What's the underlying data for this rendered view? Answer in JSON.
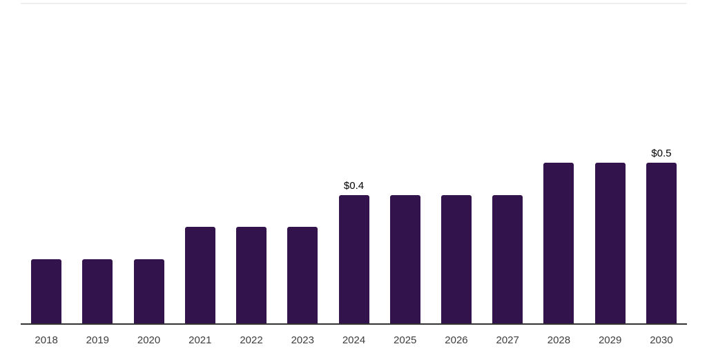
{
  "chart_data": {
    "type": "bar",
    "title": "",
    "xlabel": "",
    "ylabel": "",
    "categories": [
      "2018",
      "2019",
      "2020",
      "2021",
      "2022",
      "2023",
      "2024",
      "2025",
      "2026",
      "2027",
      "2028",
      "2029",
      "2030"
    ],
    "values": [
      0.2,
      0.2,
      0.2,
      0.3,
      0.3,
      0.3,
      0.4,
      0.4,
      0.4,
      0.4,
      0.5,
      0.5,
      0.5
    ],
    "point_labels": [
      "",
      "",
      "",
      "",
      "",
      "",
      "$0.4",
      "",
      "",
      "",
      "",
      "",
      "$0.5"
    ],
    "ylim": [
      0,
      1.0
    ],
    "grid": false,
    "legend": "none",
    "colors": {
      "bar": "#33134B",
      "axis_line": "#333333",
      "plot_top_border": "#efefef",
      "tick_label": "#3d3d3d",
      "data_label": "#000000",
      "background": "#ffffff"
    }
  }
}
